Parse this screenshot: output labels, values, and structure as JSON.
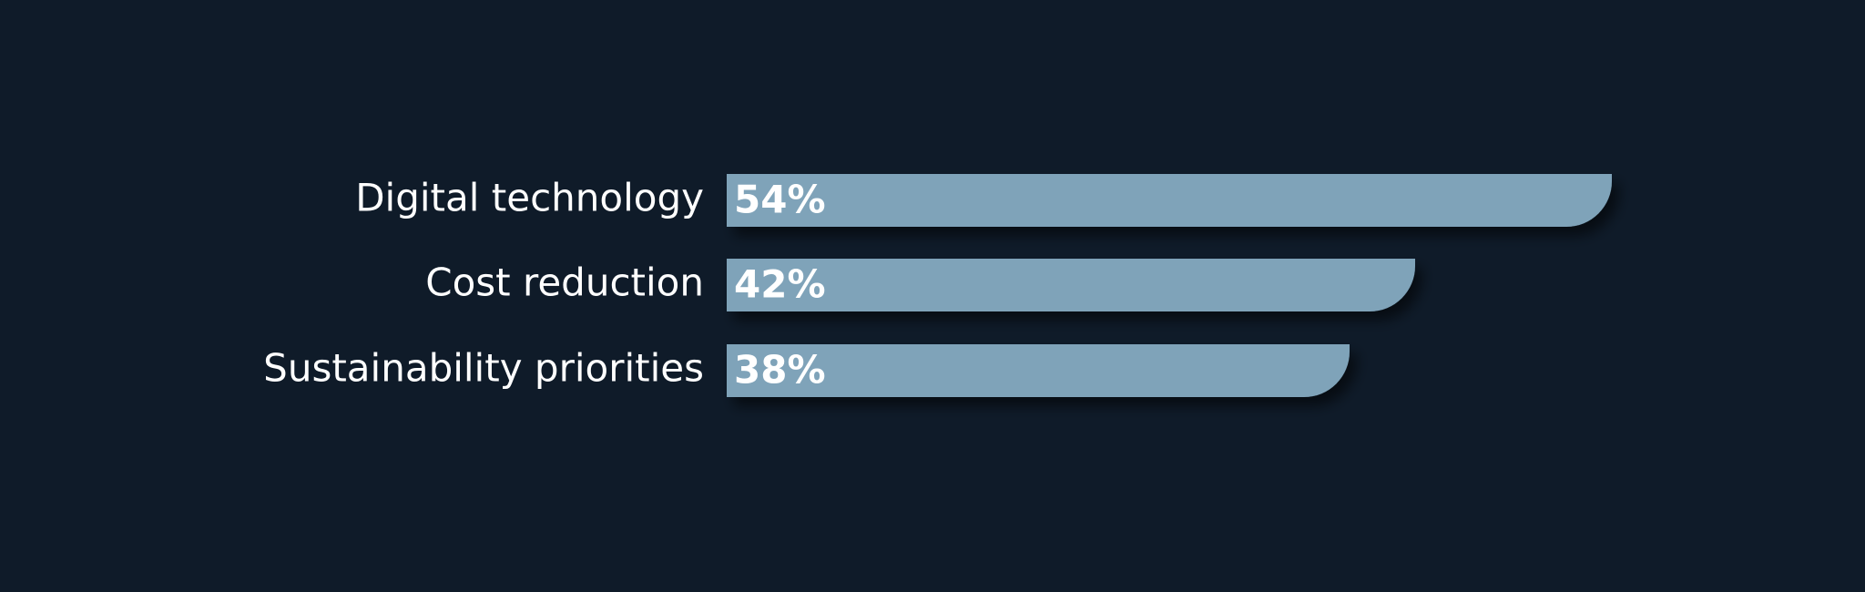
{
  "chart_data": {
    "type": "bar",
    "orientation": "horizontal",
    "categories": [
      "Digital technology",
      "Cost reduction",
      "Sustainability priorities"
    ],
    "values": [
      54,
      42,
      38
    ],
    "value_labels": [
      "54%",
      "42%",
      "38%"
    ],
    "color": "#7fa3b9"
  }
}
